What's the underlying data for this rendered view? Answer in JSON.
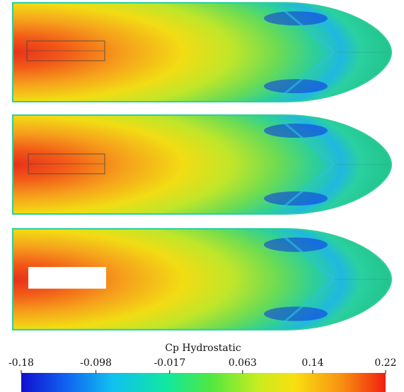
{
  "colorbar": {
    "title": "Cp Hydrostatic",
    "lim": [
      -0.18,
      0.22
    ],
    "ticks": [
      -0.18,
      -0.098,
      -0.017,
      0.063,
      0.14,
      0.22
    ]
  }
}
